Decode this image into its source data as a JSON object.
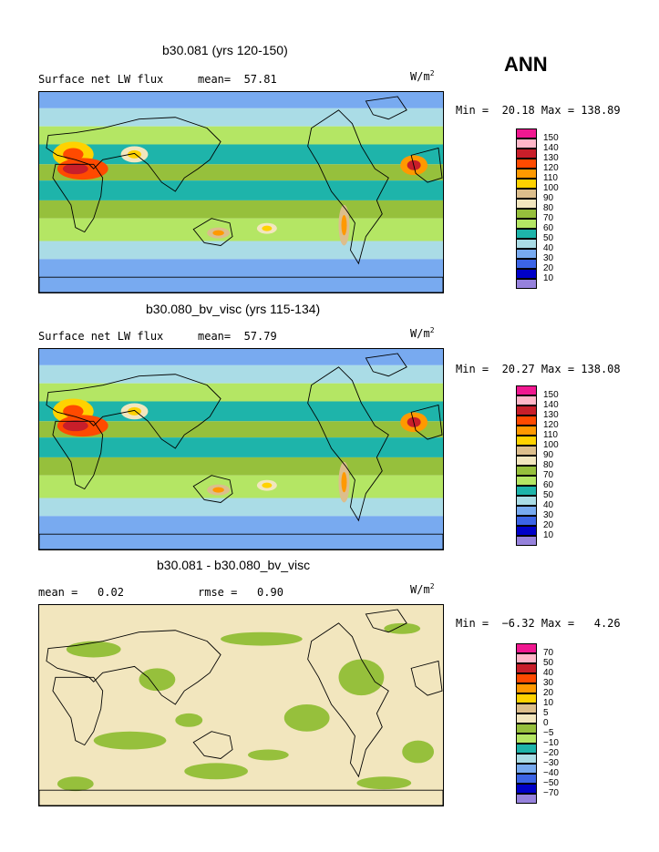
{
  "season": "ANN",
  "units_html": "W/m",
  "units_sup": "2",
  "panels": [
    {
      "title": "b30.081 (yrs 120-150)",
      "left_label": "Surface net LW flux",
      "mean_label": "mean=  57.81",
      "minmax": "Min =  20.18 Max = 138.89",
      "colorbar_labels": [
        "150",
        "140",
        "130",
        "120",
        "110",
        "100",
        "90",
        "80",
        "70",
        "60",
        "50",
        "40",
        "30",
        "20",
        "10"
      ]
    },
    {
      "title": "b30.080_bv_visc (yrs 115-134)",
      "left_label": "Surface net LW flux",
      "mean_label": "mean=  57.79",
      "minmax": "Min =  20.27 Max = 138.08",
      "colorbar_labels": [
        "150",
        "140",
        "130",
        "120",
        "110",
        "100",
        "90",
        "80",
        "70",
        "60",
        "50",
        "40",
        "30",
        "20",
        "10"
      ]
    },
    {
      "title": "b30.081 - b30.080_bv_visc",
      "left_label": "mean =   0.02",
      "mean_label": "rmse =   0.90",
      "minmax": "Min =  −6.32 Max =   4.26",
      "colorbar_labels": [
        "70",
        "50",
        "40",
        "30",
        "20",
        "10",
        "5",
        "0",
        "−5",
        "−10",
        "−20",
        "−30",
        "−40",
        "−50",
        "−70"
      ]
    }
  ],
  "colors": {
    "levels": [
      "#f01890",
      "#ffb6c8",
      "#c81e2a",
      "#ff4a00",
      "#ff9900",
      "#ffd200",
      "#dcbe8c",
      "#f2e6be",
      "#96c03c",
      "#b4e664",
      "#1eb4aa",
      "#aadce6",
      "#78aaf0",
      "#3c64e6",
      "#0000c8",
      "#9682dc"
    ],
    "diff_warm": "#f2e6be",
    "diff_cool": "#96c03c"
  }
}
